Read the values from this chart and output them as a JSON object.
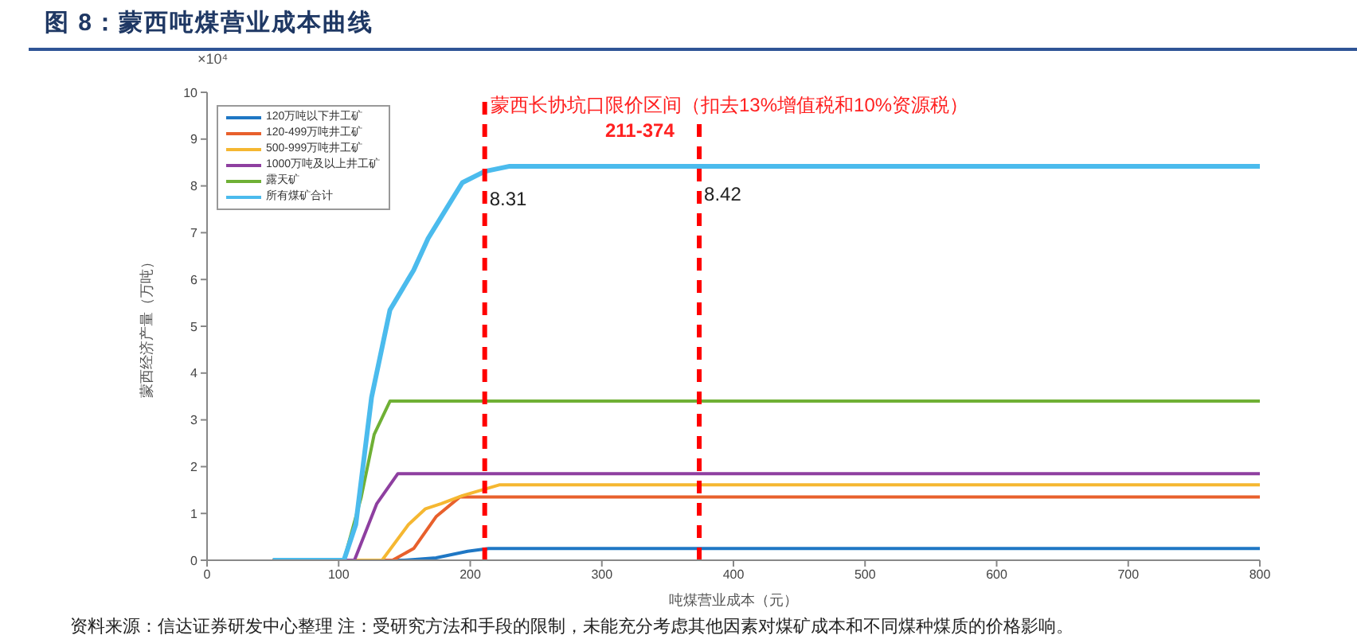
{
  "chart_data": {
    "type": "line",
    "title": "图 8：蒙西吨煤营业成本曲线",
    "xlabel": "吨煤营业成本（元）",
    "ylabel": "蒙西经济产量（万吨）",
    "xlim": [
      0,
      800
    ],
    "xticks": [
      0,
      100,
      200,
      300,
      400,
      500,
      600,
      700,
      800
    ],
    "ylim": [
      0,
      10
    ],
    "yticks": [
      0,
      1,
      2,
      3,
      4,
      5,
      6,
      7,
      8,
      9,
      10
    ],
    "grid": false,
    "legend": "top left",
    "marker": "none",
    "line_style": "solid",
    "series": [
      {
        "name": "120万吨以下井工矿",
        "color": "#1f77c4",
        "x": [
          50,
          150,
          174,
          198,
          214,
          800
        ],
        "values": [
          0,
          0,
          0.05,
          0.19,
          0.25,
          0.25
        ]
      },
      {
        "name": "120-499万吨井工矿",
        "color": "#e8602c",
        "x": [
          50,
          141,
          157,
          174,
          192,
          800
        ],
        "values": [
          0,
          0,
          0.25,
          0.93,
          1.35,
          1.35
        ]
      },
      {
        "name": "500-999万吨井工矿",
        "color": "#f5b731",
        "x": [
          50,
          133,
          153,
          166,
          178,
          194,
          222,
          800
        ],
        "values": [
          0,
          0,
          0.76,
          1.1,
          1.21,
          1.38,
          1.61,
          1.61
        ]
      },
      {
        "name": "1000万吨及以上井工矿",
        "color": "#8e3fa0",
        "x": [
          50,
          112,
          129,
          145,
          800
        ],
        "values": [
          0,
          0,
          1.21,
          1.85,
          1.85
        ]
      },
      {
        "name": "露天矿",
        "color": "#6fb035",
        "x": [
          50,
          104,
          117,
          127,
          139,
          800
        ],
        "values": [
          0,
          0,
          1.33,
          2.69,
          3.4,
          3.4
        ]
      },
      {
        "name": "所有煤矿合计",
        "color": "#4bbbed",
        "x": [
          50,
          104,
          113,
          125,
          139,
          157,
          168,
          194,
          211,
          230,
          374,
          800
        ],
        "values": [
          0,
          0,
          0.76,
          3.48,
          5.35,
          6.2,
          6.88,
          8.07,
          8.31,
          8.42,
          8.42,
          8.42
        ]
      }
    ],
    "ref_lines": [
      {
        "axis": "x",
        "value": 211,
        "color": "#ff0000",
        "line_style": "dashed"
      },
      {
        "axis": "x",
        "value": 374,
        "color": "#ff0000",
        "line_style": "dashed"
      }
    ],
    "annotations": [
      "×10⁴",
      "蒙西长协坑口限价区间（扣去13%增值税和10%资源税）",
      "211-374",
      "资料来源：信达证券研发中心整理 注：受研究方法和手段的限制，未能充分考虑其他因素对煤矿成本和不同煤种煤质的价格影响。",
      {
        "text": "8.31",
        "x": 211,
        "y": 8.31
      },
      {
        "text": "8.42",
        "x": 374,
        "y": 8.42
      }
    ]
  }
}
